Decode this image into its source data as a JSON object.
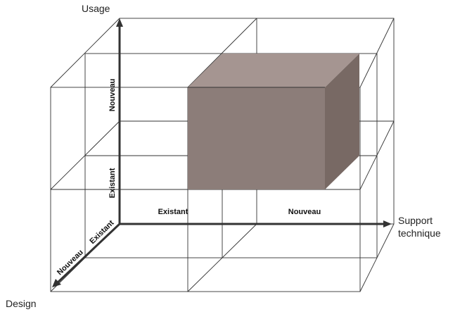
{
  "axes": {
    "y": {
      "title": "Usage",
      "levels": [
        "Existant",
        "Nouveau"
      ]
    },
    "x": {
      "title_line1": "Support",
      "title_line2": "technique",
      "levels": [
        "Existant",
        "Nouveau"
      ]
    },
    "z": {
      "title": "Design",
      "levels": [
        "Existant",
        "Nouveau"
      ]
    }
  },
  "highlighted_block": {
    "usage": "Nouveau",
    "support_technique": "Nouveau",
    "design": "Existant",
    "colors": {
      "front": "#8c7d79",
      "top": "#a59591",
      "side": "#786964"
    }
  }
}
